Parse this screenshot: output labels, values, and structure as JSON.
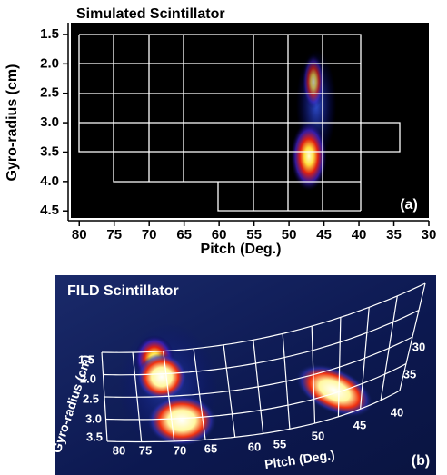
{
  "chart_data": [
    {
      "type": "heatmap",
      "title": "Simulated Scintillator",
      "x_label": "Pitch (Deg.)",
      "y_label": "Gyro-radius (cm)",
      "panel_label": "(a)",
      "xlim": [
        81.2,
        30
      ],
      "ylim": [
        1.3,
        4.62
      ],
      "xticks": [
        80,
        75,
        70,
        65,
        60,
        55,
        50,
        45,
        40,
        35,
        30
      ],
      "yticks": [
        1.5,
        {
          "value": 2,
          "label": "2.0"
        },
        2.5,
        {
          "value": 3,
          "label": "3.0"
        },
        3.5,
        {
          "value": 4,
          "label": "4.0"
        },
        4.5
      ]
    },
    {
      "type": "image",
      "title": "FILD Scintillator",
      "x_label": "Pitch (Deg.)",
      "y_label": "Gyro-radius (cm)",
      "panel_label": "(b)",
      "radius_labels": [
        1.5,
        {
          "value": 2,
          "label": "2.0"
        },
        2.5,
        {
          "value": 3,
          "label": "3.0"
        },
        3.5
      ],
      "pitch_labels": [
        80,
        75,
        70,
        65,
        60,
        55,
        50,
        45,
        40,
        35,
        30
      ]
    }
  ]
}
